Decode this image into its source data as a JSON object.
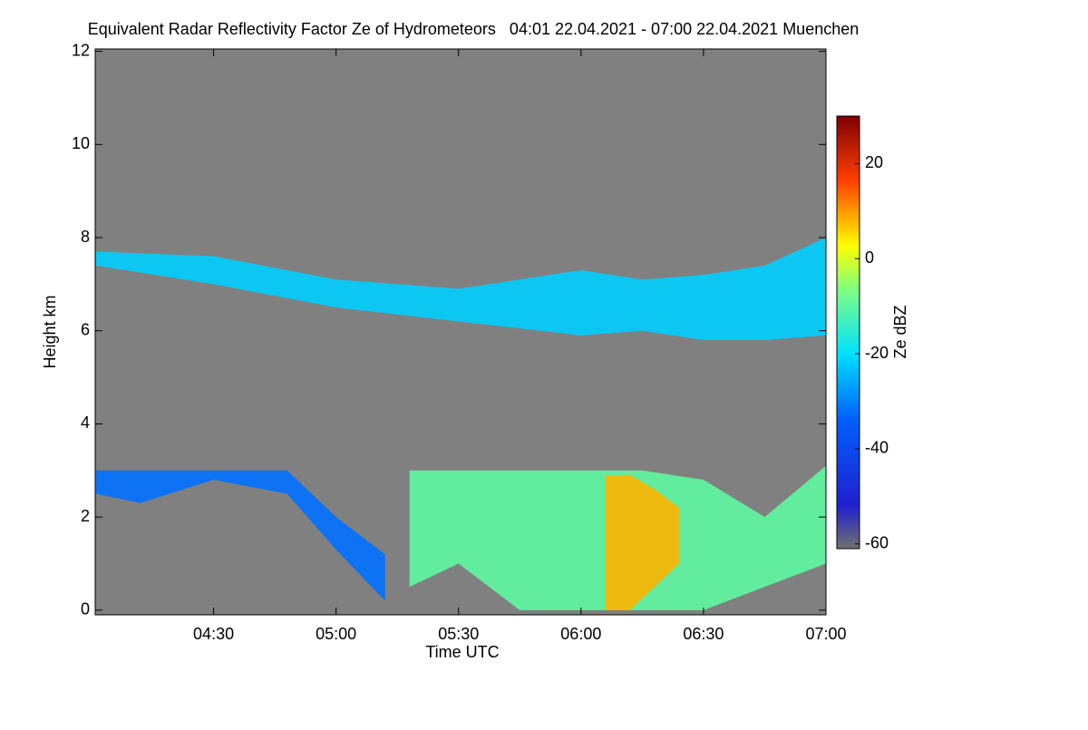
{
  "chart_data": {
    "type": "time-height",
    "title": "Equivalent Radar Reflectivity Factor Ze of Hydrometeors   04:01 22.04.2021 - 07:00 22.04.2021 Muenchen",
    "x_label": "Time UTC",
    "y_label": "Height km",
    "colorbar_label": "Ze dBZ",
    "xlim": [
      4.0167,
      7.0
    ],
    "xticks": [
      {
        "value": 4.5,
        "label": "04:30"
      },
      {
        "value": 5.0,
        "label": "05:00"
      },
      {
        "value": 5.5,
        "label": "05:30"
      },
      {
        "value": 6.0,
        "label": "06:00"
      },
      {
        "value": 6.5,
        "label": "06:30"
      },
      {
        "value": 7.0,
        "label": "07:00"
      }
    ],
    "ylim": [
      -0.1,
      12.05
    ],
    "yticks": [
      0,
      2,
      4,
      6,
      8,
      10,
      12
    ],
    "zlim": [
      -61,
      30
    ],
    "zticks": [
      -60,
      -40,
      -20,
      0,
      20
    ],
    "regions": [
      {
        "x": [
          4.02,
          4.5,
          5.0,
          5.5,
          6.0,
          6.25,
          6.5,
          6.75,
          7.0
        ],
        "top": [
          7.7,
          7.6,
          7.1,
          6.9,
          7.3,
          7.1,
          7.2,
          7.4,
          8.0
        ],
        "base": [
          7.4,
          7.0,
          6.5,
          6.2,
          5.9,
          6.0,
          5.8,
          5.8,
          5.9
        ],
        "value": -22
      },
      {
        "x": [
          4.02,
          4.2,
          4.5,
          4.8,
          5.0,
          5.2
        ],
        "top": [
          3.0,
          3.0,
          3.0,
          3.0,
          2.0,
          1.2
        ],
        "base": [
          2.5,
          2.3,
          2.8,
          2.5,
          1.3,
          0.2
        ],
        "value": -32
      },
      {
        "x": [
          5.3,
          5.5,
          5.75,
          6.0,
          6.25,
          6.5,
          6.75,
          7.0
        ],
        "top": [
          3.0,
          3.0,
          3.0,
          3.0,
          3.0,
          2.8,
          2.0,
          3.1
        ],
        "base": [
          0.5,
          1.0,
          0,
          0,
          0,
          0,
          0.5,
          1.0
        ],
        "value": -10
      },
      {
        "x": [
          6.1,
          6.2,
          6.3,
          6.4
        ],
        "top": [
          2.9,
          2.9,
          2.6,
          2.2
        ],
        "base": [
          0,
          0,
          0.5,
          1.0
        ],
        "value": 8
      }
    ]
  }
}
